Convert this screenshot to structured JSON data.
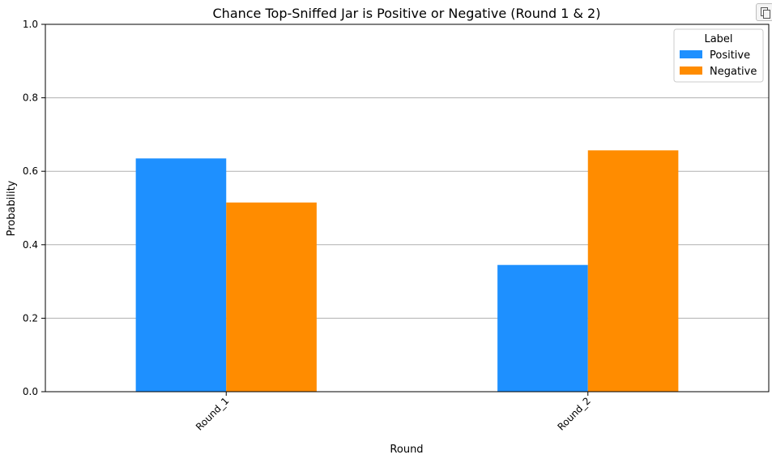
{
  "chart_data": {
    "type": "bar",
    "title": "Chance Top-Sniffed Jar is Positive or Negative (Round 1 & 2)",
    "xlabel": "Round",
    "ylabel": "Probability",
    "categories": [
      "Round_1",
      "Round_2"
    ],
    "series": [
      {
        "name": "Positive",
        "values": [
          0.635,
          0.345
        ],
        "color": "#1e90ff"
      },
      {
        "name": "Negative",
        "values": [
          0.515,
          0.657
        ],
        "color": "#ff8c00"
      }
    ],
    "ylim": [
      0,
      1.0
    ],
    "yticks": [
      "0.0",
      "0.2",
      "0.4",
      "0.6",
      "0.8",
      "1.0"
    ],
    "grid": "horizontal",
    "legend": {
      "title": "Label",
      "placement": "top-right"
    }
  },
  "toolbar": {
    "copy_icon": "copy-icon"
  }
}
